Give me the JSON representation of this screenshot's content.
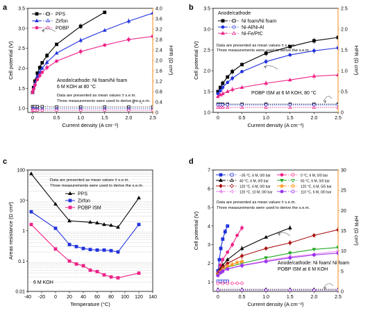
{
  "chart_data": [
    {
      "panel": "a",
      "type": "line",
      "xlabel": "Current density (A cm⁻²)",
      "ylabel": "Cell potential (V)",
      "y2label": "HFR (Ω cm²)",
      "xlim": [
        -0.1,
        2.5
      ],
      "ylim": [
        0.9,
        3.5
      ],
      "y2lim": [
        0,
        4
      ],
      "xticks": [
        "0",
        "0.5",
        "1.0",
        "1.5",
        "2.0",
        "2.5"
      ],
      "yticks": [
        "1.0",
        "1.5",
        "2.0",
        "2.5",
        "3.0",
        "3.5"
      ],
      "y2ticks": [
        "0",
        "0.4",
        "0.8",
        "1.2",
        "1.6",
        "2.0",
        "2.4",
        "2.8",
        "3.2",
        "3.6",
        "4.0"
      ],
      "legend_position": "top-left",
      "annotations": [
        "Anode/cathode: Ni foam/Ni foam",
        "6 M KOH at 80 °C",
        "Data are presented as mean values ± s.e.m.",
        "Three measurements were used to derive the s.e.m."
      ],
      "series": [
        {
          "name": "PPS",
          "color": "#000000",
          "marker": "square",
          "x": [
            0,
            0.02,
            0.05,
            0.1,
            0.15,
            0.2,
            0.3,
            0.5,
            1.0,
            1.5
          ],
          "y": [
            1.4,
            1.52,
            1.68,
            1.88,
            2.02,
            2.14,
            2.32,
            2.6,
            3.05,
            3.4
          ]
        },
        {
          "name": "Zirfon",
          "color": "#2233dd",
          "marker": "triangle",
          "x": [
            0,
            0.02,
            0.05,
            0.1,
            0.15,
            0.2,
            0.3,
            0.5,
            1.0,
            1.5,
            2.0,
            2.5
          ],
          "y": [
            1.4,
            1.5,
            1.62,
            1.8,
            1.9,
            2.0,
            2.15,
            2.38,
            2.7,
            2.95,
            3.18,
            3.38
          ]
        },
        {
          "name": "POBP",
          "color": "#ee2288",
          "marker": "circle",
          "x": [
            0,
            0.02,
            0.05,
            0.1,
            0.15,
            0.2,
            0.3,
            0.5,
            1.0,
            1.5,
            2.0,
            2.5
          ],
          "y": [
            1.4,
            1.48,
            1.58,
            1.72,
            1.82,
            1.9,
            2.02,
            2.18,
            2.42,
            2.58,
            2.72,
            2.8
          ]
        }
      ],
      "hfr_series": [
        {
          "name": "PPS",
          "color": "#000000",
          "marker": "square",
          "x": [
            0,
            0.02,
            0.05,
            0.1,
            0.2,
            0.5,
            1.0,
            1.5,
            2.0,
            2.5
          ],
          "y": [
            0.22,
            0.22,
            0.22,
            0.22,
            0.22,
            0.21,
            0.21,
            0.21,
            0.21,
            0.21
          ]
        },
        {
          "name": "Zirfon",
          "color": "#2233dd",
          "marker": "triangle",
          "x": [
            0,
            0.02,
            0.05,
            0.1,
            0.2,
            0.5,
            1.0,
            1.5,
            2.0,
            2.5
          ],
          "y": [
            0.14,
            0.14,
            0.14,
            0.14,
            0.14,
            0.14,
            0.14,
            0.14,
            0.14,
            0.14
          ]
        },
        {
          "name": "POBP",
          "color": "#ee2288",
          "marker": "circle",
          "x": [
            0,
            0.02,
            0.05,
            0.1,
            0.2,
            0.5,
            1.0,
            1.5,
            2.0,
            2.5
          ],
          "y": [
            0.08,
            0.08,
            0.08,
            0.08,
            0.08,
            0.08,
            0.08,
            0.08,
            0.08,
            0.08
          ]
        }
      ]
    },
    {
      "panel": "b",
      "type": "line",
      "xlabel": "Current density (A cm⁻²)",
      "ylabel": "Cell potential (V)",
      "y2label": "HFR (Ω cm²)",
      "xlim": [
        -0.1,
        2.5
      ],
      "ylim": [
        1.0,
        3.5
      ],
      "y2lim": [
        0,
        2.5
      ],
      "xticks": [
        "0",
        "0.5",
        "1.0",
        "1.5",
        "2.0",
        "2.5"
      ],
      "yticks": [
        "1.0",
        "1.5",
        "2.0",
        "2.5",
        "3.0",
        "3.5"
      ],
      "y2ticks": [
        "0",
        "0.5",
        "1.0",
        "1.5",
        "2.0",
        "2.5"
      ],
      "legend_title": "Anode/cathode",
      "legend_position": "top-left",
      "annotations": [
        "Data are presented as mean values ± s.e.m.",
        "Three measurements were used to derive the s.e.m.",
        "POBP ISM at 6 M KOH, 80 °C"
      ],
      "series": [
        {
          "name": "Ni foam/Ni foam",
          "color": "#000000",
          "marker": "square",
          "x": [
            0,
            0.05,
            0.1,
            0.2,
            0.3,
            0.5,
            1.0,
            1.5,
            2.0,
            2.5
          ],
          "y": [
            1.5,
            1.6,
            1.7,
            1.85,
            1.98,
            2.15,
            2.42,
            2.58,
            2.72,
            2.8
          ]
        },
        {
          "name": "Ni-Al/Ni-Al",
          "color": "#2233dd",
          "marker": "circle",
          "x": [
            0,
            0.05,
            0.1,
            0.2,
            0.3,
            0.5,
            1.0,
            1.5,
            2.0,
            2.5
          ],
          "y": [
            1.45,
            1.52,
            1.6,
            1.72,
            1.82,
            1.98,
            2.22,
            2.38,
            2.48,
            2.55
          ]
        },
        {
          "name": "Ni-Fe/PtC",
          "color": "#ee2288",
          "marker": "triangle",
          "x": [
            0,
            0.05,
            0.1,
            0.2,
            0.3,
            0.5,
            1.0,
            1.5,
            2.0,
            2.5
          ],
          "y": [
            1.38,
            1.42,
            1.45,
            1.5,
            1.55,
            1.6,
            1.7,
            1.78,
            1.87,
            1.9
          ]
        }
      ],
      "hfr_series": [
        {
          "name": "Ni foam/Ni foam",
          "color": "#000000",
          "marker": "square",
          "x": [
            0,
            0.05,
            0.1,
            0.2,
            0.5,
            1.0,
            1.5,
            2.0,
            2.5
          ],
          "y": [
            0.2,
            0.2,
            0.2,
            0.2,
            0.2,
            0.2,
            0.2,
            0.2,
            0.2
          ]
        },
        {
          "name": "Ni-Al/Ni-Al",
          "color": "#2233dd",
          "marker": "circle",
          "x": [
            0,
            0.05,
            0.1,
            0.2,
            0.5,
            1.0,
            1.5,
            2.0,
            2.5
          ],
          "y": [
            0.18,
            0.18,
            0.18,
            0.18,
            0.18,
            0.18,
            0.18,
            0.18,
            0.18
          ]
        },
        {
          "name": "Ni-Fe/PtC",
          "color": "#ee2288",
          "marker": "triangle",
          "x": [
            0,
            0.05,
            0.1,
            0.2,
            0.5,
            1.0,
            1.5,
            2.0,
            2.5
          ],
          "y": [
            0.12,
            0.12,
            0.12,
            0.12,
            0.12,
            0.12,
            0.12,
            0.12,
            0.12
          ]
        }
      ]
    },
    {
      "panel": "c",
      "type": "line",
      "xlabel": "Temperature (°C)",
      "ylabel": "Areas resistance (Ω cm²)",
      "xlim": [
        -40,
        140
      ],
      "ylim": [
        0.01,
        100
      ],
      "yscale": "log",
      "xticks": [
        "-40",
        "-20",
        "0",
        "20",
        "40",
        "60",
        "80",
        "100",
        "120",
        "140"
      ],
      "yticks": [
        "0.01",
        "0.1",
        "1",
        "10",
        "100"
      ],
      "legend_position": "top-center",
      "annotations": [
        "Data are presented as mean values ± s.e.m.",
        "Three measurements were used to derive the s.e.m.",
        "6 M KOH"
      ],
      "series": [
        {
          "name": "PPS",
          "color": "#000000",
          "marker": "triangle",
          "x": [
            -35,
            0,
            20,
            50,
            60,
            70,
            80,
            90,
            120
          ],
          "y": [
            75,
            7.5,
            2.1,
            1.9,
            1.8,
            1.6,
            1.5,
            1.3,
            12
          ]
        },
        {
          "name": "Zirfon",
          "color": "#2233dd",
          "marker": "square",
          "x": [
            -35,
            0,
            20,
            30,
            40,
            50,
            60,
            70,
            80,
            90,
            120
          ],
          "y": [
            4.2,
            1.2,
            0.35,
            0.3,
            0.26,
            0.24,
            0.23,
            0.23,
            0.22,
            0.2,
            1.6
          ]
        },
        {
          "name": "POBP ISM",
          "color": "#ee2288",
          "marker": "square",
          "x": [
            -35,
            0,
            20,
            30,
            40,
            50,
            60,
            70,
            80,
            90,
            120
          ],
          "y": [
            1.6,
            0.25,
            0.1,
            0.08,
            0.07,
            0.05,
            0.045,
            0.035,
            0.03,
            0.028,
            0.04
          ]
        }
      ]
    },
    {
      "panel": "d",
      "type": "line",
      "xlabel": "Current density (A cm⁻²)",
      "ylabel": "Cell potential (V)",
      "y2label": "HFR (Ω cm²)",
      "xlim": [
        -0.1,
        2.5
      ],
      "ylim": [
        0.5,
        7
      ],
      "y2lim": [
        0,
        30
      ],
      "xticks": [
        "0",
        "0.5",
        "1.0",
        "1.5",
        "2.0",
        "2.5"
      ],
      "yticks": [
        "1",
        "2",
        "3",
        "4",
        "5",
        "6",
        "7"
      ],
      "y2ticks": [
        "0",
        "5",
        "10",
        "15",
        "20",
        "25",
        "30"
      ],
      "legend_position": "top",
      "annotations": [
        "Data are presented as mean values ± s.e.m.",
        "Three measurements were used to derive the s.e.m.",
        "Anode/cathode: Ni foam/ Ni foam",
        "POBP ISM at 6 M KOH"
      ],
      "series": [
        {
          "name": "−35 °C, 6 M, 0/0 bar",
          "color": "#2233dd",
          "marker": "square",
          "x": [
            0,
            0.03,
            0.06,
            0.1,
            0.15,
            0.2
          ],
          "y": [
            1.6,
            2.2,
            2.8,
            3.3,
            3.7,
            4.0
          ]
        },
        {
          "name": "0 °C, 6 M, 0/0 bar",
          "color": "#ee2288",
          "marker": "circle",
          "x": [
            0,
            0.05,
            0.1,
            0.2,
            0.3,
            0.4,
            0.5
          ],
          "y": [
            1.5,
            1.9,
            2.2,
            2.6,
            3.0,
            3.5,
            3.9
          ]
        },
        {
          "name": "40 °C, 6 M, 0/0 bar",
          "color": "#000000",
          "marker": "triangle",
          "x": [
            0,
            0.05,
            0.1,
            0.2,
            0.5,
            1.0,
            1.5
          ],
          "y": [
            1.45,
            1.7,
            1.9,
            2.2,
            2.8,
            3.4,
            3.9
          ]
        },
        {
          "name": "60 °C, 6 M, 0/0 bar",
          "color": "#22aa22",
          "marker": "triangle-down",
          "x": [
            0,
            0.05,
            0.1,
            0.2,
            0.5,
            1.0,
            1.5,
            2.0,
            2.5
          ],
          "y": [
            1.4,
            1.55,
            1.65,
            1.8,
            2.0,
            2.3,
            2.55,
            2.75,
            2.85
          ]
        },
        {
          "name": "120 °C, 6 M, 0/0 bar",
          "color": "#aa1111",
          "marker": "diamond",
          "x": [
            0,
            0.05,
            0.1,
            0.2,
            0.5,
            1.0,
            1.5,
            2.0,
            2.5
          ],
          "y": [
            1.4,
            1.6,
            1.8,
            2.0,
            2.4,
            2.8,
            3.1,
            3.5,
            3.8
          ]
        },
        {
          "name": "120 °C, 6 M, 5/5 bar",
          "color": "#ff9922",
          "marker": "star",
          "x": [
            0,
            0.05,
            0.1,
            0.2,
            0.3,
            0.4,
            0.5
          ],
          "y": [
            1.4,
            1.55,
            1.7,
            1.85,
            1.95,
            2.05,
            2.1
          ]
        },
        {
          "name": "120 °C, 10 M, 0/0 bar",
          "color": "#ee88ee",
          "marker": "triangle-left",
          "x": [
            0,
            0.05,
            0.1,
            0.2,
            0.5,
            1.0,
            1.5,
            2.0,
            2.5
          ],
          "y": [
            1.35,
            1.5,
            1.6,
            1.7,
            1.9,
            2.15,
            2.35,
            2.5,
            2.65
          ]
        },
        {
          "name": "110 °C, 6 M, 0/0 bar",
          "color": "#9933ee",
          "marker": "hexagon",
          "x": [
            0,
            0.05,
            0.1,
            0.2,
            0.5,
            1.0,
            1.5,
            2.0,
            2.5
          ],
          "y": [
            1.35,
            1.5,
            1.58,
            1.7,
            1.88,
            2.1,
            2.3,
            2.45,
            2.55
          ]
        }
      ],
      "hfr_series": [
        {
          "name": "−35 °C, 6 M, 0/0 bar",
          "color": "#2233dd",
          "marker": "square",
          "x": [
            0,
            0.05,
            0.1,
            0.15,
            0.2
          ],
          "y": [
            2.5,
            2.5,
            2.5,
            2.5,
            2.5
          ]
        },
        {
          "name": "0 °C, 6 M, 0/0 bar",
          "color": "#ee2288",
          "marker": "circle",
          "x": [
            0,
            0.1,
            0.2,
            0.3,
            0.4,
            0.5
          ],
          "y": [
            2.0,
            2.0,
            2.0,
            2.0,
            2.0,
            2.0
          ]
        },
        {
          "name": "40 °C, 6 M, 0/0 bar",
          "color": "#000000",
          "marker": "triangle",
          "x": [
            0,
            0.5,
            1.0,
            1.5,
            2.0,
            2.5
          ],
          "y": [
            0.5,
            0.5,
            0.5,
            0.5,
            0.5,
            0.5
          ]
        },
        {
          "name": "110 °C, 6 M, 0/0 bar",
          "color": "#9933ee",
          "marker": "hexagon",
          "x": [
            0,
            0.5,
            1.0,
            1.5,
            2.0,
            2.5
          ],
          "y": [
            0.3,
            0.3,
            0.3,
            0.3,
            0.3,
            0.3
          ]
        }
      ]
    }
  ]
}
